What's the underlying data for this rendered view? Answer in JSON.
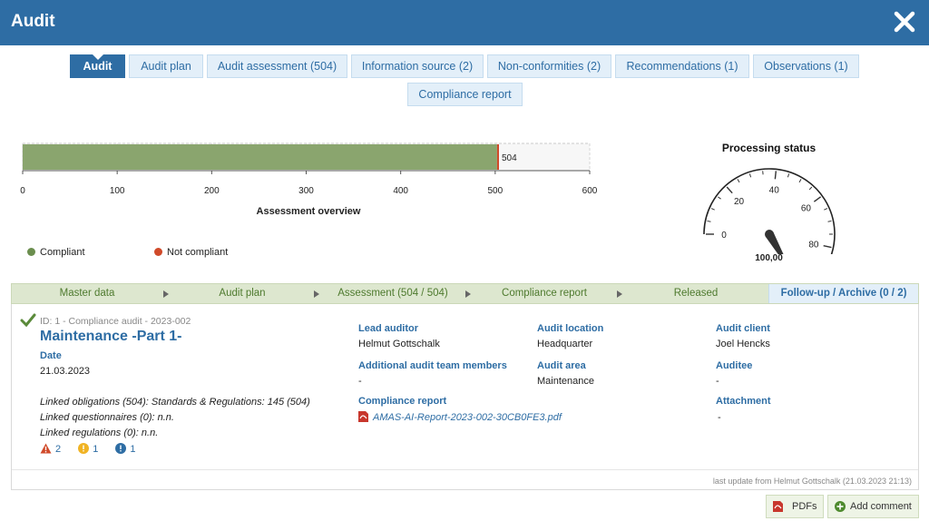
{
  "window": {
    "title": "Audit",
    "close_icon": "close-icon"
  },
  "tabs": [
    {
      "label": "Audit",
      "active": true
    },
    {
      "label": "Audit plan"
    },
    {
      "label": "Audit assessment (504)"
    },
    {
      "label": "Information source (2)"
    },
    {
      "label": "Non-conformities (2)"
    },
    {
      "label": "Recommendations (1)"
    },
    {
      "label": "Observations (1)"
    },
    {
      "label": "Compliance report"
    }
  ],
  "chart_data": {
    "type": "bar",
    "orientation": "horizontal",
    "title": "Assessment overview",
    "xlim": [
      0,
      600
    ],
    "ticks": [
      0,
      100,
      200,
      300,
      400,
      500,
      600
    ],
    "series": [
      {
        "name": "Compliant",
        "value": 502,
        "color": "#8aa56e"
      },
      {
        "name": "Not compliant",
        "value": 2,
        "color": "#d04a2a"
      }
    ],
    "total_label": "504",
    "grid": true,
    "legend": [
      "Compliant",
      "Not compliant"
    ],
    "legend_colors": [
      "#6b8e4e",
      "#d04a2a"
    ]
  },
  "gauge": {
    "title": "Processing status",
    "ticks": [
      0,
      20,
      40,
      60,
      80,
      100
    ],
    "value": 100,
    "value_label": "100,00"
  },
  "workflow": [
    {
      "label": "Master data"
    },
    {
      "label": "Audit plan"
    },
    {
      "label": "Assessment (504 / 504)"
    },
    {
      "label": "Compliance report"
    },
    {
      "label": "Released"
    },
    {
      "label": "Follow-up / Archive (0 / 2)",
      "active": true
    }
  ],
  "audit": {
    "meta": "ID: 1 - Compliance audit - 2023-002",
    "name": "Maintenance -Part 1-",
    "date_label": "Date",
    "date": "21.03.2023",
    "linked_obligations": "Linked obligations (504): Standards & Regulations: 145 (504)",
    "linked_questionnaires": "Linked questionnaires (0): n.n.",
    "linked_regulations": "Linked regulations (0): n.n.",
    "counts": {
      "warnings": "2",
      "notices": "1",
      "infos": "1"
    },
    "lead_auditor_label": "Lead auditor",
    "lead_auditor": "Helmut Gottschalk",
    "team_label": "Additional audit team members",
    "team": "-",
    "report_label": "Compliance report",
    "report_file": "AMAS-AI-Report-2023-002-30CB0FE3.pdf",
    "location_label": "Audit location",
    "location": "Headquarter",
    "area_label": "Audit area",
    "area": "Maintenance",
    "client_label": "Audit client",
    "client": "Joel Hencks",
    "auditee_label": "Auditee",
    "auditee": "-",
    "attachment_label": "Attachment",
    "attachment": "-",
    "last_update": "last update from Helmut Gottschalk (21.03.2023 21:13)"
  },
  "buttons": {
    "pdfs": "PDFs",
    "add_comment": "Add comment"
  },
  "colors": {
    "brand": "#2e6da4",
    "compliant": "#8aa56e",
    "not_compliant": "#d04a2a"
  }
}
